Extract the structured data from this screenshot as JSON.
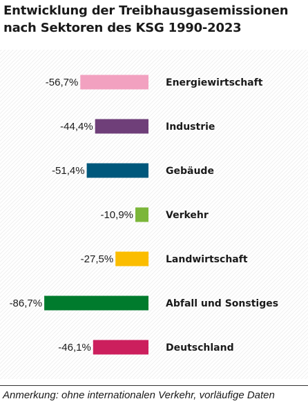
{
  "title_lines": [
    "Entwicklung der Treibhausgasemissionen",
    "nach Sektoren des KSG 1990-2023"
  ],
  "note": "Anmerkung: ohne internationalen Verkehr, vorläufige Daten",
  "chart_data": {
    "type": "bar",
    "orientation": "horizontal",
    "categories": [
      "Energiewirtschaft",
      "Industrie",
      "Gebäude",
      "Verkehr",
      "Landwirtschaft",
      "Abfall und Sonstiges",
      "Deutschland"
    ],
    "values": [
      -56.7,
      -44.4,
      -51.4,
      -10.9,
      -27.5,
      -86.7,
      -46.1
    ],
    "value_labels": [
      "-56,7%",
      "-44,4%",
      "-51,4%",
      "-10,9%",
      "-27,5%",
      "-86,7%",
      "-46,1%"
    ],
    "colors": [
      "#f2a1c0",
      "#6f3f79",
      "#00587c",
      "#7bb63a",
      "#fbbd00",
      "#007b2d",
      "#cc1f5d"
    ],
    "unit": "%",
    "grid": false,
    "background": "hatched"
  }
}
